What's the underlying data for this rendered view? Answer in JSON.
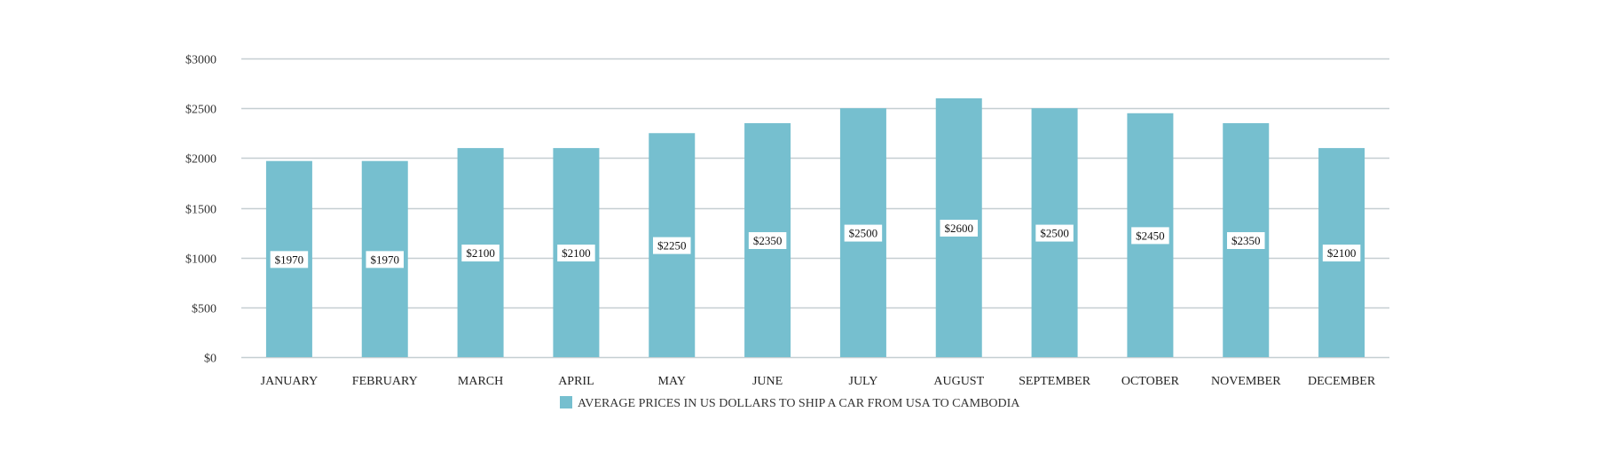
{
  "chart_data": {
    "type": "bar",
    "categories": [
      "JANUARY",
      "FEBRUARY",
      "MARCH",
      "APRIL",
      "MAY",
      "JUNE",
      "JULY",
      "AUGUST",
      "SEPTEMBER",
      "OCTOBER",
      "NOVEMBER",
      "DECEMBER"
    ],
    "series": [
      {
        "name": "AVERAGE PRICES IN US DOLLARS TO SHIP A CAR FROM USA TO CAMBODIA",
        "values": [
          1970,
          1970,
          2100,
          2100,
          2250,
          2350,
          2500,
          2600,
          2500,
          2450,
          2350,
          2100
        ],
        "data_labels": [
          "$1970",
          "$1970",
          "$2100",
          "$2100",
          "$2250",
          "$2350",
          "$2500",
          "$2600",
          "$2500",
          "$2450",
          "$2350",
          "$2100"
        ],
        "color": "#76bfcf"
      }
    ],
    "y_ticks": [
      0,
      500,
      1000,
      1500,
      2000,
      2500,
      3000
    ],
    "y_tick_labels": [
      "$0",
      "$500",
      "$1000",
      "$1500",
      "$2000",
      "$2500",
      "$3000"
    ],
    "ylim": [
      0,
      3000
    ],
    "grid": true,
    "legend_position": "bottom-center",
    "gridline_color": "#c5ced1"
  }
}
